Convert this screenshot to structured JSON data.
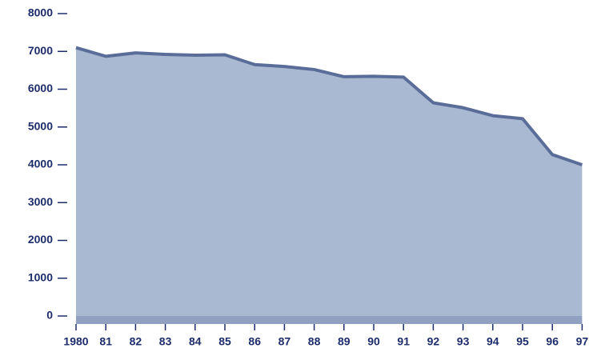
{
  "chart_data": {
    "type": "area",
    "categories": [
      "1980",
      "81",
      "82",
      "83",
      "84",
      "85",
      "86",
      "87",
      "88",
      "89",
      "90",
      "91",
      "92",
      "93",
      "94",
      "95",
      "96",
      "97"
    ],
    "values": [
      7100,
      6870,
      6960,
      6920,
      6900,
      6910,
      6650,
      6600,
      6520,
      6330,
      6340,
      6320,
      5640,
      5510,
      5300,
      5220,
      4270,
      4000
    ],
    "color": "#aab9d2",
    "line_color": "#5a6d99",
    "ylim": [
      0,
      8000
    ],
    "yticks": [
      0,
      1000,
      2000,
      3000,
      4000,
      5000,
      6000,
      7000,
      8000
    ]
  }
}
